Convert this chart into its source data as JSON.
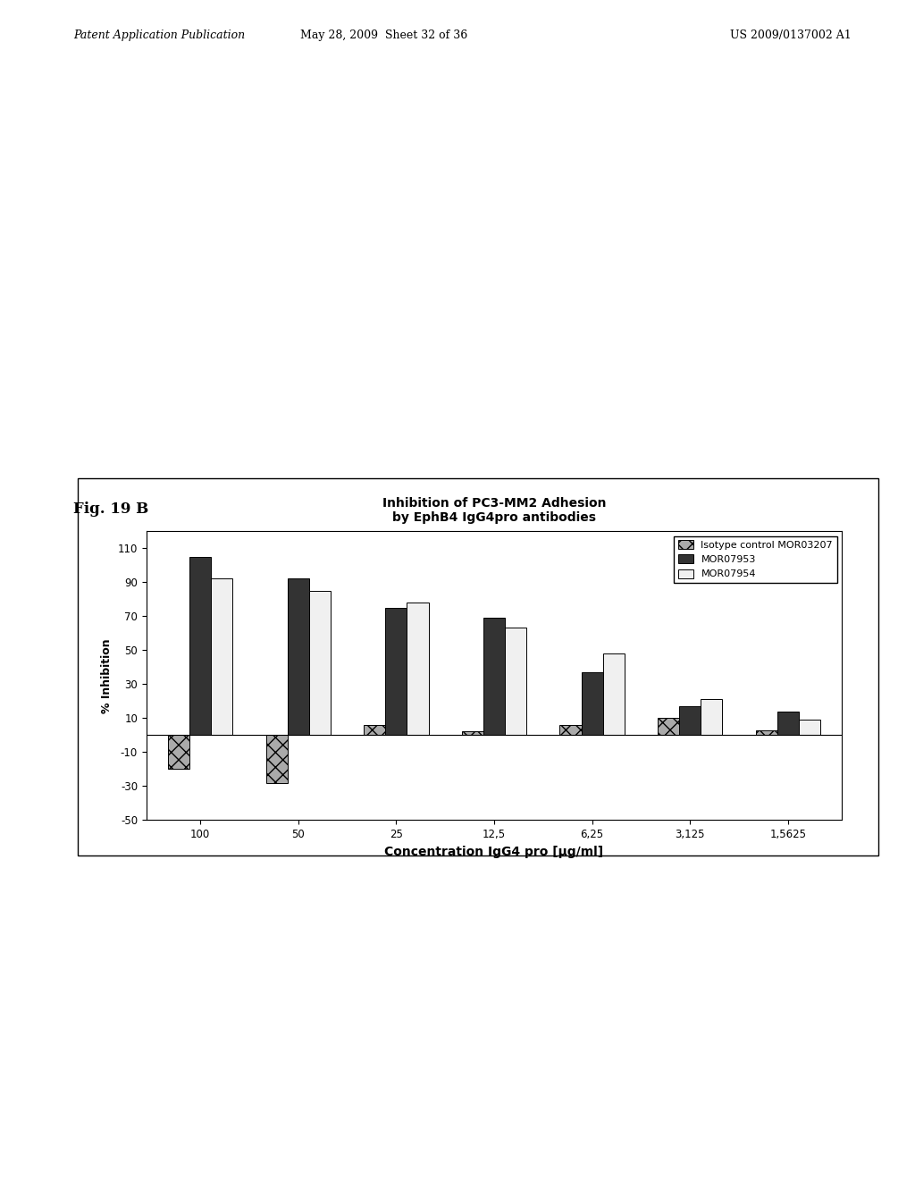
{
  "title_line1": "Inhibition of PC3-MM2 Adhesion",
  "title_line2": "by EphB4 IgG4pro antibodies",
  "xlabel": "Concentration IgG4 pro [µg/ml]",
  "ylabel": "% Inhibition",
  "fig_label": "Fig. 19 B",
  "categories": [
    "100",
    "50",
    "25",
    "12,5",
    "6,25",
    "3,125",
    "1,5625"
  ],
  "series": {
    "Isotype control MOR03207": {
      "values": [
        -20,
        -28,
        6,
        2,
        6,
        10,
        3
      ],
      "color": "#aaaaaa",
      "hatch": "xx"
    },
    "MOR07953": {
      "values": [
        105,
        92,
        75,
        69,
        37,
        17,
        14
      ],
      "color": "#333333",
      "hatch": ""
    },
    "MOR07954": {
      "values": [
        92,
        85,
        78,
        63,
        48,
        21,
        9
      ],
      "color": "#f0f0f0",
      "hatch": ""
    }
  },
  "ylim": [
    -50,
    120
  ],
  "yticks": [
    -50,
    -30,
    -10,
    10,
    30,
    50,
    70,
    90,
    110
  ],
  "background_color": "#ffffff",
  "chart_bg": "#ffffff",
  "header_left": "Patent Application Publication",
  "header_mid": "May 28, 2009  Sheet 32 of 36",
  "header_right": "US 2009/0137002 A1"
}
